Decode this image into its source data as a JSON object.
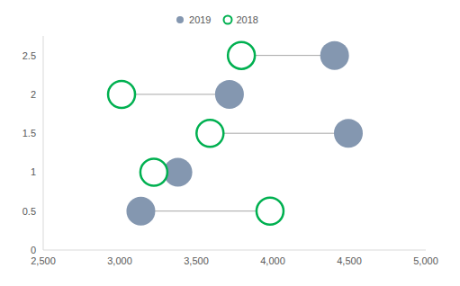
{
  "chart_data": {
    "type": "scatter",
    "series": [
      {
        "name": "2019",
        "color": "#8497B0",
        "marker": "filled_circle",
        "x": [
          3138,
          3380,
          4494,
          3717,
          4404
        ],
        "y": [
          0.5,
          1,
          1.5,
          2,
          2.5
        ]
      },
      {
        "name": "2018",
        "color": "#00B050",
        "marker": "open_circle",
        "x": [
          3982,
          3223,
          3590,
          3012,
          3795
        ],
        "y": [
          0.5,
          1,
          1.5,
          2,
          2.5
        ]
      }
    ],
    "xlim": [
      2500,
      5000
    ],
    "xticks": [
      {
        "value": 2500,
        "label": "2,500"
      },
      {
        "value": 3000,
        "label": "3,000"
      },
      {
        "value": 3500,
        "label": "3,500"
      },
      {
        "value": 4000,
        "label": "4,000"
      },
      {
        "value": 4500,
        "label": "4,500"
      },
      {
        "value": 5000,
        "label": "5,000"
      }
    ],
    "ylim": [
      0,
      2.75
    ],
    "yticks": [
      0,
      0.5,
      1,
      1.5,
      2,
      2.5
    ],
    "legend": "top",
    "grid": false
  }
}
